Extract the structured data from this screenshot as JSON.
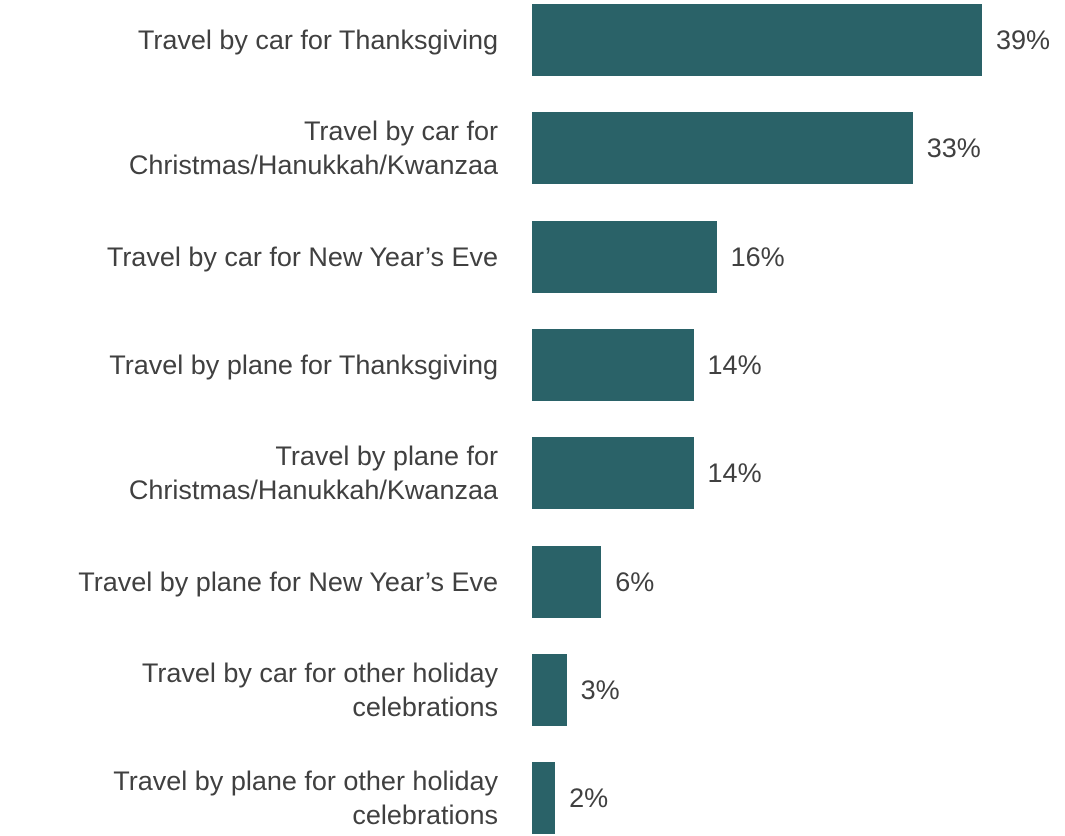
{
  "chart_data": {
    "type": "bar",
    "orientation": "horizontal",
    "categories": [
      "Travel by car for Thanksgiving",
      "Travel by car for Christmas/Hanukkah/Kwanzaa",
      "Travel by car for New Year’s Eve",
      "Travel by plane for Thanksgiving",
      "Travel by plane for Christmas/Hanukkah/Kwanzaa",
      "Travel by plane for New Year’s Eve",
      "Travel by car for other holiday celebrations",
      "Travel by plane for other holiday celebrations"
    ],
    "values": [
      39,
      33,
      16,
      14,
      14,
      6,
      3,
      2
    ],
    "value_labels": [
      "39%",
      "33%",
      "16%",
      "14%",
      "14%",
      "6%",
      "3%",
      "2%"
    ],
    "color": "#2a6268"
  }
}
